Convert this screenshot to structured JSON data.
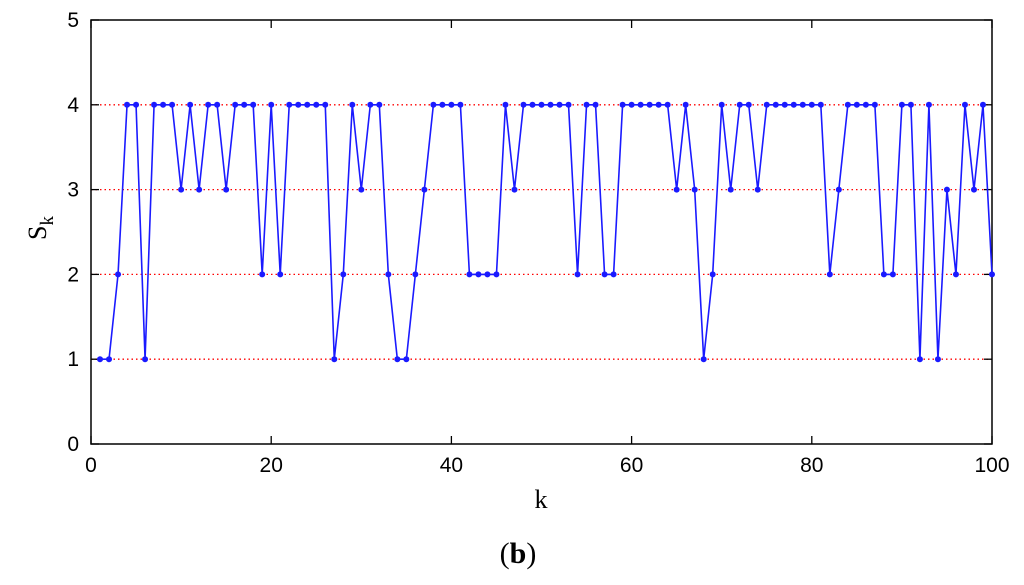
{
  "chart_data": {
    "type": "line",
    "xlabel": "k",
    "ylabel": "S",
    "ylabel_subscript": "k",
    "panel_label_open": "(",
    "panel_label_letter": "b",
    "panel_label_close": ")",
    "xlim": [
      0,
      100
    ],
    "ylim": [
      0,
      5
    ],
    "x_ticks": [
      0,
      20,
      40,
      60,
      80,
      100
    ],
    "y_ticks": [
      0,
      1,
      2,
      3,
      4,
      5
    ],
    "grid_y_values": [
      1,
      2,
      3,
      4
    ],
    "colors": {
      "line": "#1a1aff",
      "grid": "#ff0000",
      "axis": "#000000"
    },
    "series": [
      {
        "x": [
          1,
          2,
          3,
          4,
          5,
          6,
          7,
          8,
          9,
          10,
          11,
          12,
          13,
          14,
          15,
          16,
          17,
          18,
          19,
          20,
          21,
          22,
          23,
          24,
          25,
          26,
          27,
          28,
          29,
          30,
          31,
          32,
          33,
          34,
          35,
          36,
          37,
          38,
          39,
          40,
          41,
          42,
          43,
          44,
          45,
          46,
          47,
          48,
          49,
          50,
          51,
          52,
          53,
          54,
          55,
          56,
          57,
          58,
          59,
          60,
          61,
          62,
          63,
          64,
          65,
          66,
          67,
          68,
          69,
          70,
          71,
          72,
          73,
          74,
          75,
          76,
          77,
          78,
          79,
          80,
          81,
          82,
          83,
          84,
          85,
          86,
          87,
          88,
          89,
          90,
          91,
          92,
          93,
          94,
          95,
          96,
          97,
          98,
          99,
          100
        ],
        "values": [
          1,
          1,
          2,
          4,
          4,
          1,
          4,
          4,
          4,
          3,
          4,
          3,
          4,
          4,
          3,
          4,
          4,
          4,
          2,
          4,
          2,
          4,
          4,
          4,
          4,
          4,
          1,
          2,
          4,
          3,
          4,
          4,
          2,
          1,
          1,
          2,
          3,
          4,
          4,
          4,
          4,
          2,
          2,
          2,
          2,
          4,
          3,
          4,
          4,
          4,
          4,
          4,
          4,
          2,
          4,
          4,
          2,
          2,
          4,
          4,
          4,
          4,
          4,
          4,
          3,
          4,
          3,
          1,
          2,
          4,
          3,
          4,
          4,
          3,
          4,
          4,
          4,
          4,
          4,
          4,
          4,
          2,
          3,
          4,
          4,
          4,
          4,
          2,
          2,
          4,
          4,
          1,
          4,
          1,
          3,
          2,
          4,
          3,
          4,
          2
        ]
      }
    ]
  }
}
